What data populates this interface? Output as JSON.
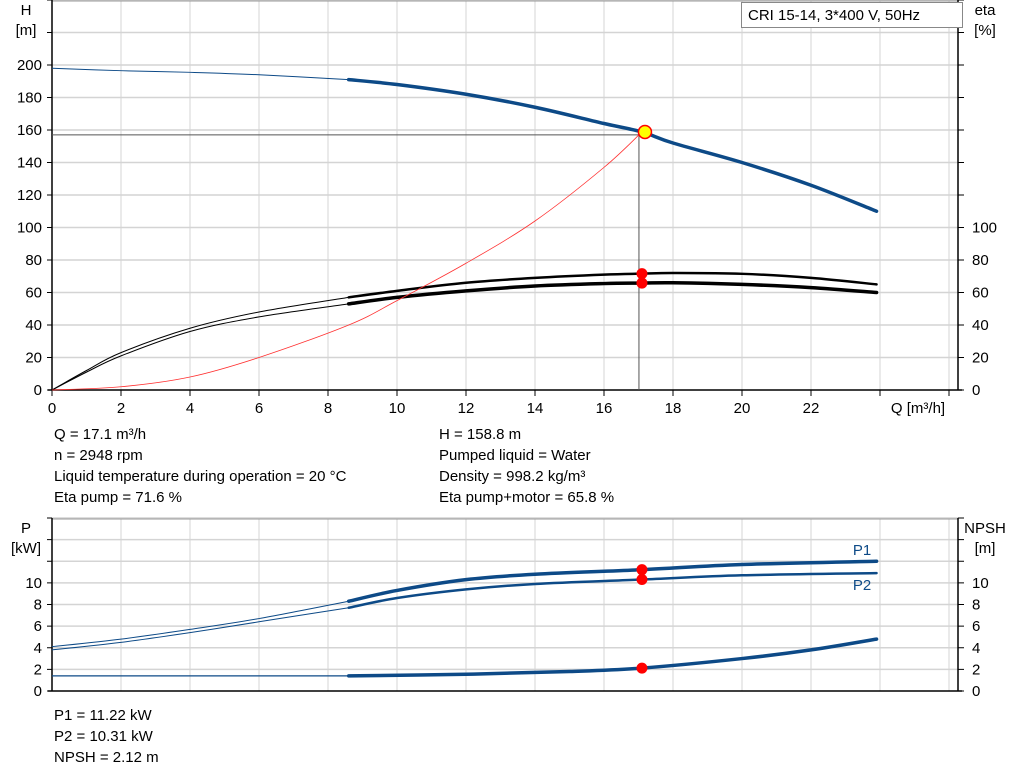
{
  "legend_title": "CRI 15-14, 3*400 V, 50Hz",
  "colors": {
    "head": "#0d4a87",
    "efficiency": "#000000",
    "system_curve": "#ff3030",
    "power": "#0d4a87",
    "npsh": "#000000",
    "duty_point": "#ff0000",
    "duty_point_fill": "#ffff00",
    "grid": "#d4d4d4"
  },
  "info_top_left": [
    "Q = 17.1 m³/h",
    "n = 2948 rpm",
    "Liquid temperature during operation = 20 °C",
    "Eta pump = 71.6 %"
  ],
  "info_top_right": [
    "H = 158.8 m",
    "Pumped liquid = Water",
    "Density = 998.2 kg/m³",
    "Eta pump+motor = 65.8 %"
  ],
  "info_bottom": [
    "P1 = 11.22 kW",
    "P2 = 10.31 kW",
    "NPSH = 2.12 m"
  ],
  "chart_data": [
    {
      "type": "line",
      "xlabel": "Q [m³/h]",
      "ylabel": [
        "H",
        "[m]"
      ],
      "y2label": [
        "eta",
        "[%]"
      ],
      "xlim": [
        0,
        26
      ],
      "ylim": [
        0,
        240
      ],
      "y2lim": [
        0,
        240
      ],
      "xticks": [
        0,
        2,
        4,
        6,
        8,
        10,
        12,
        14,
        16,
        18,
        20,
        22
      ],
      "yticks": [
        0,
        20,
        40,
        60,
        80,
        100,
        120,
        140,
        160,
        180,
        200
      ],
      "y2ticks": [
        0,
        20,
        40,
        60,
        80,
        100
      ],
      "grid": true,
      "duty_point": {
        "Q": 17.1,
        "H": 158.8,
        "eta_pump": 71.6,
        "eta_pump_motor": 65.8
      },
      "series": [
        {
          "key": "head",
          "axis": "left",
          "allowed_from": 8.6,
          "points": [
            [
              0,
              198
            ],
            [
              2,
              196.5
            ],
            [
              4,
              195.5
            ],
            [
              6,
              194
            ],
            [
              8.6,
              191
            ],
            [
              10,
              188
            ],
            [
              12,
              182
            ],
            [
              14,
              174
            ],
            [
              16,
              164
            ],
            [
              17.1,
              158.8
            ],
            [
              18,
              152
            ],
            [
              20,
              140
            ],
            [
              22,
              126
            ],
            [
              23.9,
              110
            ]
          ]
        },
        {
          "key": "eta_pump",
          "axis": "right",
          "allowed_from": 8.6,
          "points": [
            [
              0,
              0
            ],
            [
              1,
              12
            ],
            [
              2,
              23
            ],
            [
              4,
              38
            ],
            [
              6,
              48
            ],
            [
              8.6,
              57
            ],
            [
              10,
              61
            ],
            [
              12,
              66
            ],
            [
              14,
              69
            ],
            [
              16,
              71
            ],
            [
              17.1,
              71.6
            ],
            [
              18,
              72
            ],
            [
              20,
              71.5
            ],
            [
              22,
              69
            ],
            [
              23.9,
              65
            ]
          ]
        },
        {
          "key": "eta_pump_motor",
          "axis": "right",
          "allowed_from": 8.6,
          "points": [
            [
              0,
              0
            ],
            [
              1,
              11
            ],
            [
              2,
              21
            ],
            [
              4,
              36
            ],
            [
              6,
              45
            ],
            [
              8.6,
              53
            ],
            [
              10,
              57
            ],
            [
              12,
              61
            ],
            [
              14,
              64
            ],
            [
              16,
              65.5
            ],
            [
              17.1,
              65.8
            ],
            [
              18,
              66
            ],
            [
              20,
              65
            ],
            [
              22,
              63
            ],
            [
              23.9,
              60
            ]
          ]
        },
        {
          "key": "system_curve",
          "axis": "left",
          "points": [
            [
              0,
              0
            ],
            [
              2,
              2
            ],
            [
              4,
              8
            ],
            [
              6,
              20
            ],
            [
              8.6,
              40
            ],
            [
              10,
              55
            ],
            [
              12,
              78
            ],
            [
              14,
              104
            ],
            [
              16,
              137
            ],
            [
              17.1,
              158.8
            ]
          ]
        }
      ]
    },
    {
      "type": "line",
      "ylabel": [
        "P",
        "[kW]"
      ],
      "y2label": [
        "NPSH",
        "[m]"
      ],
      "xlim": [
        0,
        26
      ],
      "ylim": [
        0,
        16
      ],
      "y2lim": [
        0,
        16
      ],
      "yticks": [
        0,
        2,
        4,
        6,
        8,
        10
      ],
      "y2ticks": [
        0,
        2,
        4,
        6,
        8,
        10
      ],
      "grid": true,
      "duty_point": {
        "Q": 17.1,
        "P1": 11.22,
        "P2": 10.31,
        "NPSH": 2.12
      },
      "series": [
        {
          "key": "P1",
          "name": "P1",
          "axis": "left",
          "allowed_from": 8.6,
          "points": [
            [
              0,
              4.1
            ],
            [
              2,
              4.8
            ],
            [
              4,
              5.7
            ],
            [
              6,
              6.7
            ],
            [
              8.6,
              8.3
            ],
            [
              10,
              9.3
            ],
            [
              12,
              10.3
            ],
            [
              14,
              10.8
            ],
            [
              17.1,
              11.22
            ],
            [
              20,
              11.7
            ],
            [
              23.9,
              12
            ]
          ]
        },
        {
          "key": "P2",
          "name": "P2",
          "axis": "left",
          "allowed_from": 8.6,
          "points": [
            [
              0,
              3.8
            ],
            [
              2,
              4.5
            ],
            [
              4,
              5.4
            ],
            [
              6,
              6.4
            ],
            [
              8.6,
              7.7
            ],
            [
              10,
              8.6
            ],
            [
              12,
              9.4
            ],
            [
              14,
              9.9
            ],
            [
              17.1,
              10.31
            ],
            [
              20,
              10.7
            ],
            [
              23.9,
              10.9
            ]
          ]
        },
        {
          "key": "NPSH",
          "axis": "right",
          "allowed_from": 8.6,
          "points": [
            [
              0,
              1.4
            ],
            [
              8.6,
              1.4
            ],
            [
              12,
              1.55
            ],
            [
              15,
              1.8
            ],
            [
              17.1,
              2.12
            ],
            [
              20,
              3
            ],
            [
              22,
              3.8
            ],
            [
              23.9,
              4.8
            ]
          ]
        }
      ]
    }
  ]
}
